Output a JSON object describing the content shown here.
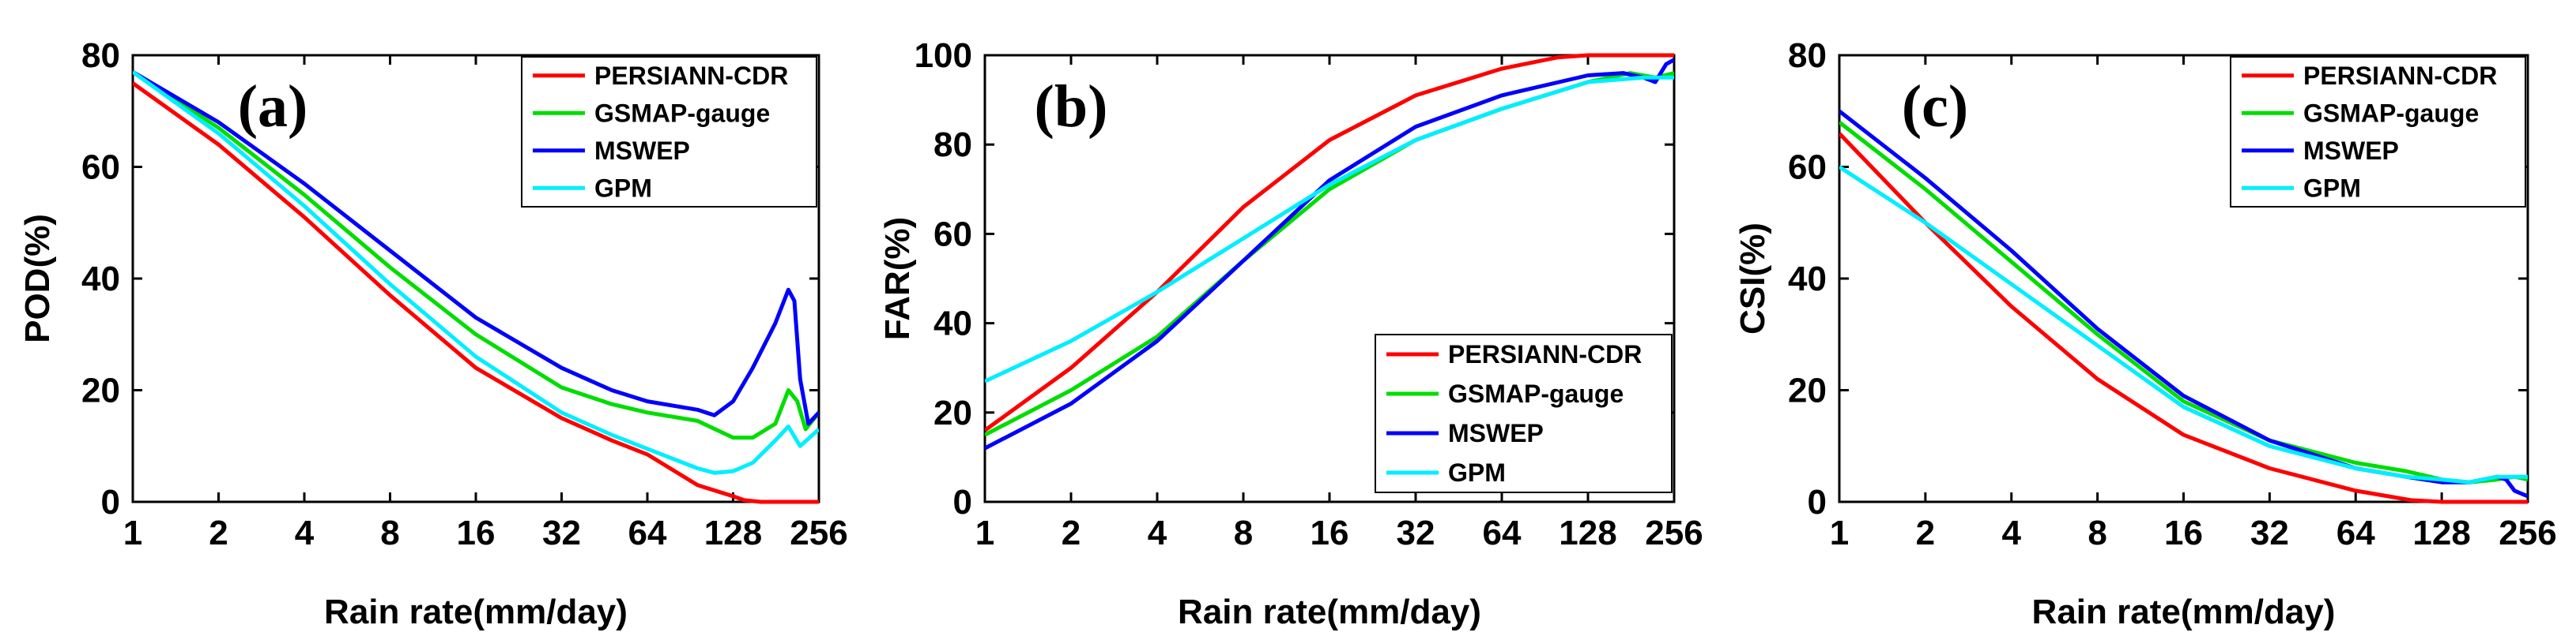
{
  "chart_data": [
    {
      "type": "line",
      "panel_label": "(a)",
      "xlabel": "Rain rate(mm/day)",
      "ylabel": "POD(%)",
      "x_scale": "log2",
      "xlim": [
        1,
        256
      ],
      "ylim": [
        0,
        80
      ],
      "xticks": [
        1,
        2,
        4,
        8,
        16,
        32,
        64,
        128,
        256
      ],
      "yticks": [
        0,
        20,
        40,
        60,
        80
      ],
      "legend_position": "top-right",
      "series": [
        {
          "name": "PERSIANN-CDR",
          "color": "#ff0000",
          "x": [
            1,
            2,
            4,
            8,
            16,
            32,
            48,
            64,
            96,
            128,
            140,
            160,
            200,
            256
          ],
          "y": [
            75,
            64,
            51,
            37,
            24,
            15,
            11,
            8.5,
            3,
            1,
            0.3,
            0,
            0,
            0
          ]
        },
        {
          "name": "GSMAP-gauge",
          "color": "#00dd00",
          "x": [
            1,
            2,
            4,
            8,
            16,
            32,
            48,
            64,
            96,
            128,
            150,
            180,
            200,
            215,
            230,
            256
          ],
          "y": [
            77,
            67,
            55,
            42,
            30,
            20.5,
            17.5,
            16,
            14.5,
            11.5,
            11.5,
            14,
            20,
            18,
            13,
            16
          ]
        },
        {
          "name": "MSWEP",
          "color": "#0000ff",
          "x": [
            1,
            2,
            4,
            8,
            16,
            32,
            48,
            64,
            96,
            110,
            128,
            150,
            180,
            200,
            210,
            220,
            235,
            256
          ],
          "y": [
            77,
            68,
            57,
            45,
            33,
            24,
            20,
            18,
            16.5,
            15.5,
            18,
            24,
            32,
            38,
            36,
            22,
            14,
            16
          ]
        },
        {
          "name": "GPM",
          "color": "#00eeff",
          "x": [
            1,
            2,
            4,
            8,
            16,
            32,
            48,
            64,
            96,
            110,
            128,
            150,
            180,
            200,
            220,
            256
          ],
          "y": [
            77,
            66,
            53,
            39,
            26,
            16,
            12,
            9.5,
            6,
            5.2,
            5.5,
            7,
            11,
            13.5,
            10,
            13
          ]
        }
      ]
    },
    {
      "type": "line",
      "panel_label": "(b)",
      "xlabel": "Rain rate(mm/day)",
      "ylabel": "FAR(%)",
      "x_scale": "log2",
      "xlim": [
        1,
        256
      ],
      "ylim": [
        0,
        100
      ],
      "xticks": [
        1,
        2,
        4,
        8,
        16,
        32,
        64,
        128,
        256
      ],
      "yticks": [
        0,
        20,
        40,
        60,
        80,
        100
      ],
      "legend_position": "bottom-right",
      "series": [
        {
          "name": "PERSIANN-CDR",
          "color": "#ff0000",
          "x": [
            1,
            2,
            4,
            8,
            16,
            32,
            64,
            100,
            128,
            256
          ],
          "y": [
            16,
            30,
            47,
            66,
            81,
            91,
            97,
            99.5,
            100,
            100
          ]
        },
        {
          "name": "GSMAP-gauge",
          "color": "#00dd00",
          "x": [
            1,
            2,
            4,
            8,
            16,
            32,
            64,
            128,
            180,
            220,
            256
          ],
          "y": [
            15,
            25,
            37,
            54,
            70,
            81,
            88,
            94,
            96,
            95,
            96
          ]
        },
        {
          "name": "MSWEP",
          "color": "#0000ff",
          "x": [
            1,
            2,
            4,
            8,
            16,
            32,
            64,
            128,
            170,
            200,
            220,
            240,
            256
          ],
          "y": [
            12,
            22,
            36,
            54,
            72,
            84,
            91,
            95.5,
            96,
            95,
            94,
            98,
            99
          ]
        },
        {
          "name": "GPM",
          "color": "#00eeff",
          "x": [
            1,
            2,
            4,
            8,
            16,
            32,
            64,
            128,
            200,
            256
          ],
          "y": [
            27,
            36,
            47,
            59,
            71,
            81,
            88,
            94,
            95,
            95
          ]
        }
      ]
    },
    {
      "type": "line",
      "panel_label": "(c)",
      "xlabel": "Rain rate(mm/day)",
      "ylabel": "CSI(%)",
      "x_scale": "log2",
      "xlim": [
        1,
        256
      ],
      "ylim": [
        0,
        80
      ],
      "xticks": [
        1,
        2,
        4,
        8,
        16,
        32,
        64,
        128,
        256
      ],
      "yticks": [
        0,
        20,
        40,
        60,
        80
      ],
      "legend_position": "top-right",
      "series": [
        {
          "name": "PERSIANN-CDR",
          "color": "#ff0000",
          "x": [
            1,
            2,
            4,
            8,
            16,
            32,
            64,
            100,
            128,
            160,
            256
          ],
          "y": [
            66,
            50,
            35,
            22,
            12,
            6,
            2,
            0.3,
            0,
            0,
            0
          ]
        },
        {
          "name": "GSMAP-gauge",
          "color": "#00dd00",
          "x": [
            1,
            2,
            4,
            8,
            16,
            32,
            64,
            96,
            128,
            160,
            200,
            230,
            256
          ],
          "y": [
            68,
            56,
            43,
            30,
            18,
            11,
            7,
            5.5,
            4,
            3.5,
            4,
            4.5,
            4
          ]
        },
        {
          "name": "MSWEP",
          "color": "#0000ff",
          "x": [
            1,
            2,
            4,
            8,
            16,
            32,
            64,
            96,
            128,
            160,
            200,
            215,
            230,
            256
          ],
          "y": [
            70,
            58,
            45,
            31,
            19,
            11,
            6,
            4.5,
            3.5,
            3.5,
            4.5,
            4,
            2,
            1
          ]
        },
        {
          "name": "GPM",
          "color": "#00eeff",
          "x": [
            1,
            2,
            4,
            8,
            16,
            32,
            64,
            96,
            128,
            160,
            200,
            256
          ],
          "y": [
            60,
            50,
            39,
            28,
            17,
            10,
            6,
            4.5,
            4,
            3.5,
            4.5,
            4.5
          ]
        }
      ]
    }
  ]
}
